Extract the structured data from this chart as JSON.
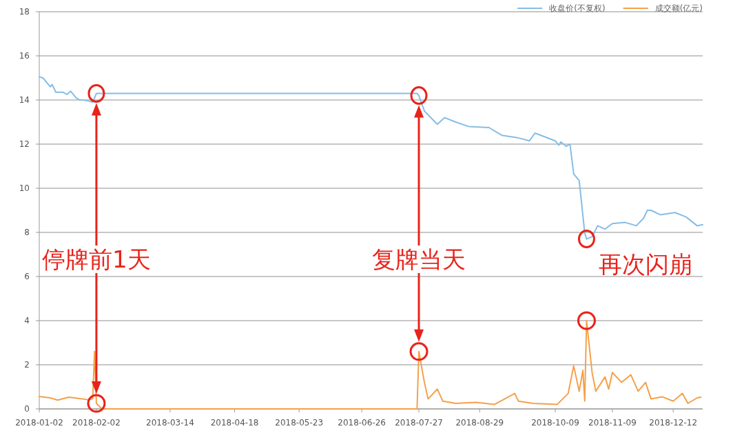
{
  "chart_data": {
    "type": "line",
    "legend": "top right",
    "grid": "y",
    "ylim": [
      0,
      18
    ],
    "yticks": [
      0,
      2,
      4,
      6,
      8,
      10,
      12,
      14,
      16,
      18
    ],
    "xlim": [
      "2018-01-02",
      "2018-12-28"
    ],
    "xticks": [
      "2018-01-02",
      "2018-02-02",
      "2018-03-14",
      "2018-04-18",
      "2018-05-23",
      "2018-06-26",
      "2018-07-27",
      "2018-08-29",
      "2018-10-09",
      "2018-11-09",
      "2018-12-12"
    ],
    "annotations": [
      "停牌前1天",
      "复牌当天",
      {
        "text": "再次闪崩",
        "x": "2018-10-26",
        "y": 7.7
      }
    ],
    "series": [
      {
        "name": "收盘价(不复权)",
        "color": "#85bde6",
        "x": [
          "2018-01-02",
          "2018-01-04",
          "2018-01-08",
          "2018-01-09",
          "2018-01-11",
          "2018-01-15",
          "2018-01-17",
          "2018-01-19",
          "2018-01-22",
          "2018-01-24",
          "2018-01-26",
          "2018-01-29",
          "2018-01-31",
          "2018-02-01",
          "2018-02-02",
          "2018-07-26",
          "2018-07-27",
          "2018-07-30",
          "2018-08-06",
          "2018-08-10",
          "2018-08-16",
          "2018-08-23",
          "2018-09-03",
          "2018-09-10",
          "2018-09-18",
          "2018-09-25",
          "2018-09-28",
          "2018-10-09",
          "2018-10-11",
          "2018-10-12",
          "2018-10-15",
          "2018-10-17",
          "2018-10-19",
          "2018-10-22",
          "2018-10-25",
          "2018-10-26",
          "2018-10-29",
          "2018-11-01",
          "2018-11-05",
          "2018-11-09",
          "2018-11-16",
          "2018-11-22",
          "2018-11-26",
          "2018-11-28",
          "2018-11-30",
          "2018-12-05",
          "2018-12-13",
          "2018-12-19",
          "2018-12-25",
          "2018-12-28"
        ],
        "values": [
          15.05,
          15.0,
          14.6,
          14.7,
          14.35,
          14.35,
          14.25,
          14.4,
          14.1,
          14.0,
          14.0,
          13.95,
          13.9,
          14.1,
          14.3,
          14.3,
          14.2,
          13.5,
          12.9,
          13.2,
          13.0,
          12.8,
          12.75,
          12.4,
          12.3,
          12.15,
          12.5,
          12.15,
          11.95,
          12.1,
          11.9,
          12.0,
          10.65,
          10.35,
          7.97,
          7.7,
          7.8,
          8.3,
          8.15,
          8.4,
          8.45,
          8.3,
          8.65,
          9.0,
          9.0,
          8.8,
          8.9,
          8.7,
          8.3,
          8.35
        ]
      },
      {
        "name": "成交额(亿元)",
        "color": "#f5a04a",
        "x": [
          "2018-01-02",
          "2018-01-08",
          "2018-01-12",
          "2018-01-18",
          "2018-01-24",
          "2018-01-29",
          "2018-01-31",
          "2018-02-01",
          "2018-02-02",
          "2018-02-05",
          "2018-07-26",
          "2018-07-27",
          "2018-07-30",
          "2018-08-01",
          "2018-08-06",
          "2018-08-09",
          "2018-08-16",
          "2018-08-27",
          "2018-09-06",
          "2018-09-17",
          "2018-09-19",
          "2018-09-27",
          "2018-10-10",
          "2018-10-16",
          "2018-10-19",
          "2018-10-22",
          "2018-10-24",
          "2018-10-25",
          "2018-10-26",
          "2018-10-29",
          "2018-10-31",
          "2018-11-05",
          "2018-11-07",
          "2018-11-09",
          "2018-11-14",
          "2018-11-19",
          "2018-11-23",
          "2018-11-27",
          "2018-11-30",
          "2018-12-06",
          "2018-12-12",
          "2018-12-17",
          "2018-12-20",
          "2018-12-25",
          "2018-12-27"
        ],
        "values": [
          0.56,
          0.5,
          0.4,
          0.53,
          0.47,
          0.41,
          0.47,
          2.6,
          0.25,
          0,
          0,
          2.6,
          1.2,
          0.45,
          0.9,
          0.35,
          0.25,
          0.3,
          0.2,
          0.7,
          0.35,
          0.25,
          0.2,
          0.7,
          1.95,
          0.8,
          1.75,
          0.35,
          4.0,
          1.65,
          0.8,
          1.45,
          0.9,
          1.65,
          1.2,
          1.55,
          0.8,
          1.2,
          0.45,
          0.55,
          0.35,
          0.7,
          0.25,
          0.5,
          0.53
        ]
      }
    ]
  }
}
